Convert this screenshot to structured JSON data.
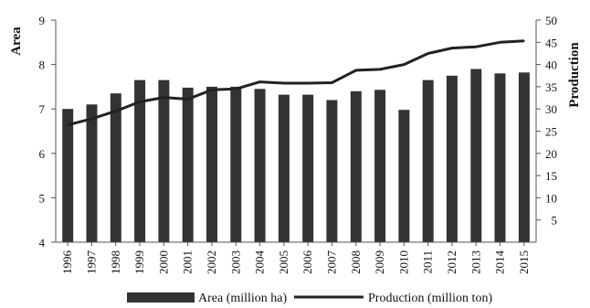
{
  "chart_data": {
    "type": "bar",
    "categories": [
      "1996",
      "1997",
      "1998",
      "1999",
      "2000",
      "2001",
      "2002",
      "2003",
      "2004",
      "2005",
      "2006",
      "2007",
      "2008",
      "2009",
      "2010",
      "2011",
      "2012",
      "2013",
      "2014",
      "2015"
    ],
    "series": [
      {
        "name": "Area (million ha)",
        "type": "bar",
        "axis": "left",
        "color": "#333333",
        "values": [
          7.0,
          7.1,
          7.35,
          7.65,
          7.65,
          7.48,
          7.5,
          7.5,
          7.45,
          7.32,
          7.32,
          7.2,
          7.4,
          7.43,
          6.98,
          7.65,
          7.75,
          7.9,
          7.8,
          7.82
        ]
      },
      {
        "name": "Production (million ton)",
        "type": "line",
        "axis": "right",
        "color": "#222222",
        "values": [
          26.4,
          27.8,
          29.5,
          31.6,
          32.6,
          32.2,
          34.3,
          34.5,
          36.1,
          35.8,
          35.8,
          35.9,
          38.7,
          38.9,
          40.0,
          42.5,
          43.7,
          44.0,
          45.0,
          45.3
        ]
      }
    ],
    "left_axis": {
      "label": "Area",
      "ylim": [
        4,
        9
      ],
      "ticks": [
        "4",
        "5",
        "6",
        "7",
        "8",
        "9"
      ]
    },
    "right_axis": {
      "label": "Production",
      "ylim": [
        0,
        50
      ],
      "ticks": [
        "5",
        "10",
        "15",
        "20",
        "25",
        "30",
        "35",
        "40",
        "45",
        "50"
      ]
    },
    "grid": false,
    "legend_position": "bottom"
  }
}
